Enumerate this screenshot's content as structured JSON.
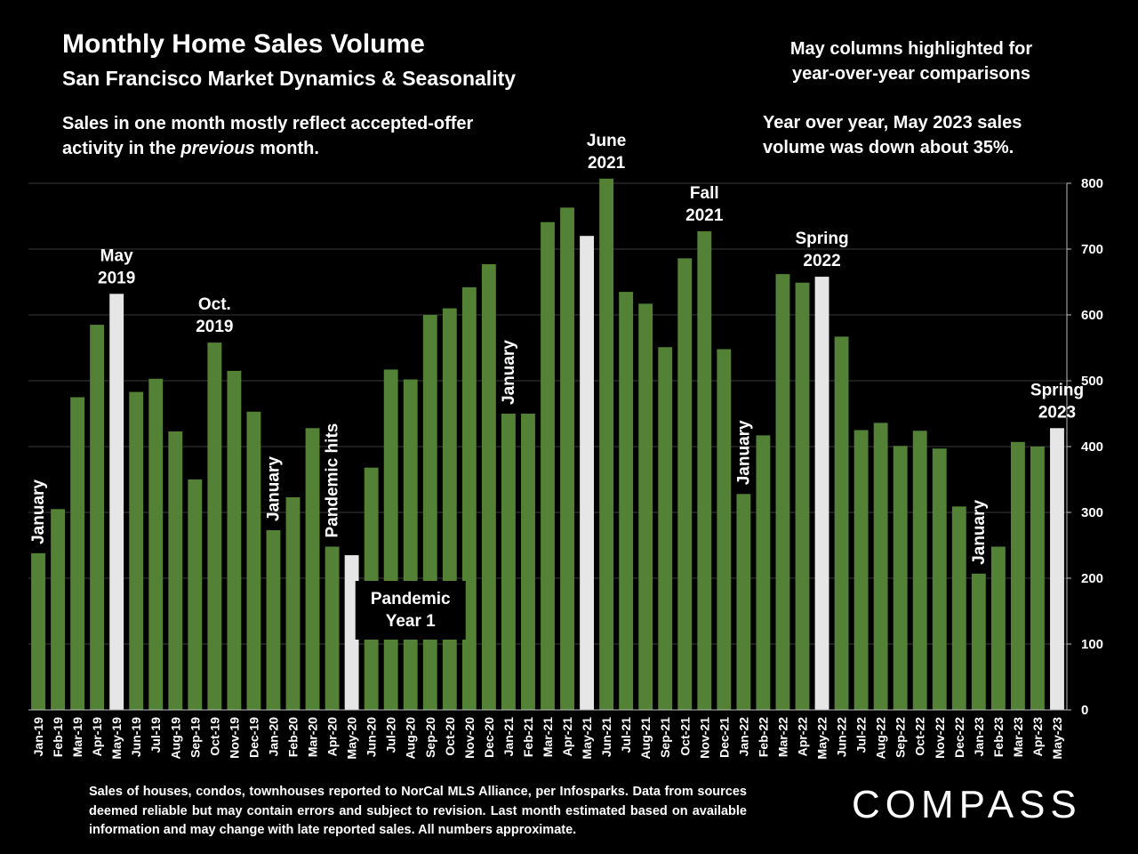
{
  "header": {
    "title": "Monthly Home Sales Volume",
    "subtitle": "San Francisco Market Dynamics & Seasonality",
    "note_left_a": "Sales in one month mostly reflect accepted-offer activity in the",
    "note_left_em": "previous",
    "note_left_b": "month.",
    "note_right_top": "May columns highlighted for year-over-year comparisons",
    "note_right_mid": "Year over year, May 2023 sales volume was down about 35%."
  },
  "footer": {
    "source": "Sales of houses, condos, townhouses reported to NorCal MLS Alliance, per Infosparks. Data from sources deemed reliable but may contain errors and subject to revision. Last month estimated based on available information and may change with late reported sales. All numbers approximate.",
    "logo": "COMPASS"
  },
  "colors": {
    "background": "#000000",
    "bar": "#538135",
    "highlight": "#e6e6e6",
    "text": "#ffffff"
  },
  "chart_data": {
    "type": "bar",
    "categories": [
      "Jan-19",
      "Feb-19",
      "Mar-19",
      "Apr-19",
      "May-19",
      "Jun-19",
      "Jul-19",
      "Aug-19",
      "Sep-19",
      "Oct-19",
      "Nov-19",
      "Dec-19",
      "Jan-20",
      "Feb-20",
      "Mar-20",
      "Apr-20",
      "May-20",
      "Jun-20",
      "Jul-20",
      "Aug-20",
      "Sep-20",
      "Oct-20",
      "Nov-20",
      "Dec-20",
      "Jan-21",
      "Feb-21",
      "Mar-21",
      "Apr-21",
      "May-21",
      "Jun-21",
      "Jul-21",
      "Aug-21",
      "Sep-21",
      "Oct-21",
      "Nov-21",
      "Dec-21",
      "Jan-22",
      "Feb-22",
      "Mar-22",
      "Apr-22",
      "May-22",
      "Jun-22",
      "Jul-22",
      "Aug-22",
      "Sep-22",
      "Oct-22",
      "Nov-22",
      "Dec-22",
      "Jan-23",
      "Feb-23",
      "Mar-23",
      "Apr-23",
      "May-23"
    ],
    "values": [
      238,
      305,
      475,
      585,
      632,
      483,
      503,
      423,
      350,
      558,
      515,
      453,
      273,
      323,
      428,
      248,
      235,
      368,
      517,
      502,
      600,
      610,
      642,
      677,
      450,
      450,
      741,
      763,
      720,
      807,
      635,
      617,
      551,
      686,
      727,
      548,
      328,
      417,
      662,
      649,
      658,
      567,
      425,
      436,
      401,
      424,
      397,
      309,
      207,
      248,
      407,
      400,
      428
    ],
    "highlight": [
      "May-19",
      "May-20",
      "May-21",
      "May-22",
      "May-23"
    ],
    "ylim": [
      0,
      800
    ],
    "yticks": [
      0,
      100,
      200,
      300,
      400,
      500,
      600,
      700,
      800
    ],
    "grid": true,
    "y_axis_side": "right",
    "annotations": [
      {
        "text": [
          "May",
          "2019"
        ],
        "category": "May-19",
        "rotated": false
      },
      {
        "text": [
          "Oct.",
          "2019"
        ],
        "category": "Oct-19",
        "rotated": false
      },
      {
        "text": [
          "June",
          "2021"
        ],
        "category": "Jun-21",
        "rotated": false
      },
      {
        "text": [
          "Fall",
          "2021"
        ],
        "category": "Nov-21",
        "rotated": false
      },
      {
        "text": [
          "Spring",
          "2022"
        ],
        "category": "May-22",
        "rotated": false
      },
      {
        "text": [
          "Spring",
          "2023"
        ],
        "category": "May-23",
        "rotated": false
      },
      {
        "text": [
          "January"
        ],
        "category": "Jan-19",
        "rotated": true
      },
      {
        "text": [
          "January"
        ],
        "category": "Jan-20",
        "rotated": true
      },
      {
        "text": [
          "Pandemic hits"
        ],
        "category": "Apr-20",
        "rotated": true
      },
      {
        "text": [
          "January"
        ],
        "category": "Jan-21",
        "rotated": true
      },
      {
        "text": [
          "January"
        ],
        "category": "Jan-22",
        "rotated": true
      },
      {
        "text": [
          "January"
        ],
        "category": "Jan-23",
        "rotated": true
      }
    ],
    "boxed_label": {
      "text": [
        "Pandemic",
        "Year 1"
      ],
      "category": "Aug-20",
      "value": 150
    }
  }
}
